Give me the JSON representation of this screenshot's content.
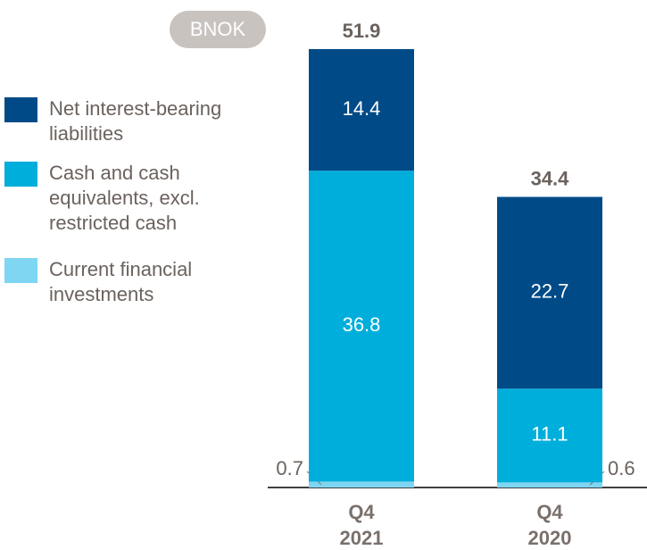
{
  "chart_data": {
    "type": "stacked_bar",
    "unit_label": "BNOK",
    "categories": [
      "Q4 2021",
      "Q4 2020"
    ],
    "series": [
      {
        "name": "Current financial investments",
        "color": "#7fd6f2",
        "values": [
          0.7,
          0.6
        ]
      },
      {
        "name": "Cash and cash equivalents, excl. restricted cash",
        "color": "#00aedb",
        "values": [
          36.8,
          11.1
        ]
      },
      {
        "name": "Net interest-bearing liabilities",
        "color": "#004b87",
        "values": [
          14.4,
          22.7
        ]
      }
    ],
    "totals": [
      51.9,
      34.4
    ],
    "ylim": [
      0,
      52
    ]
  }
}
